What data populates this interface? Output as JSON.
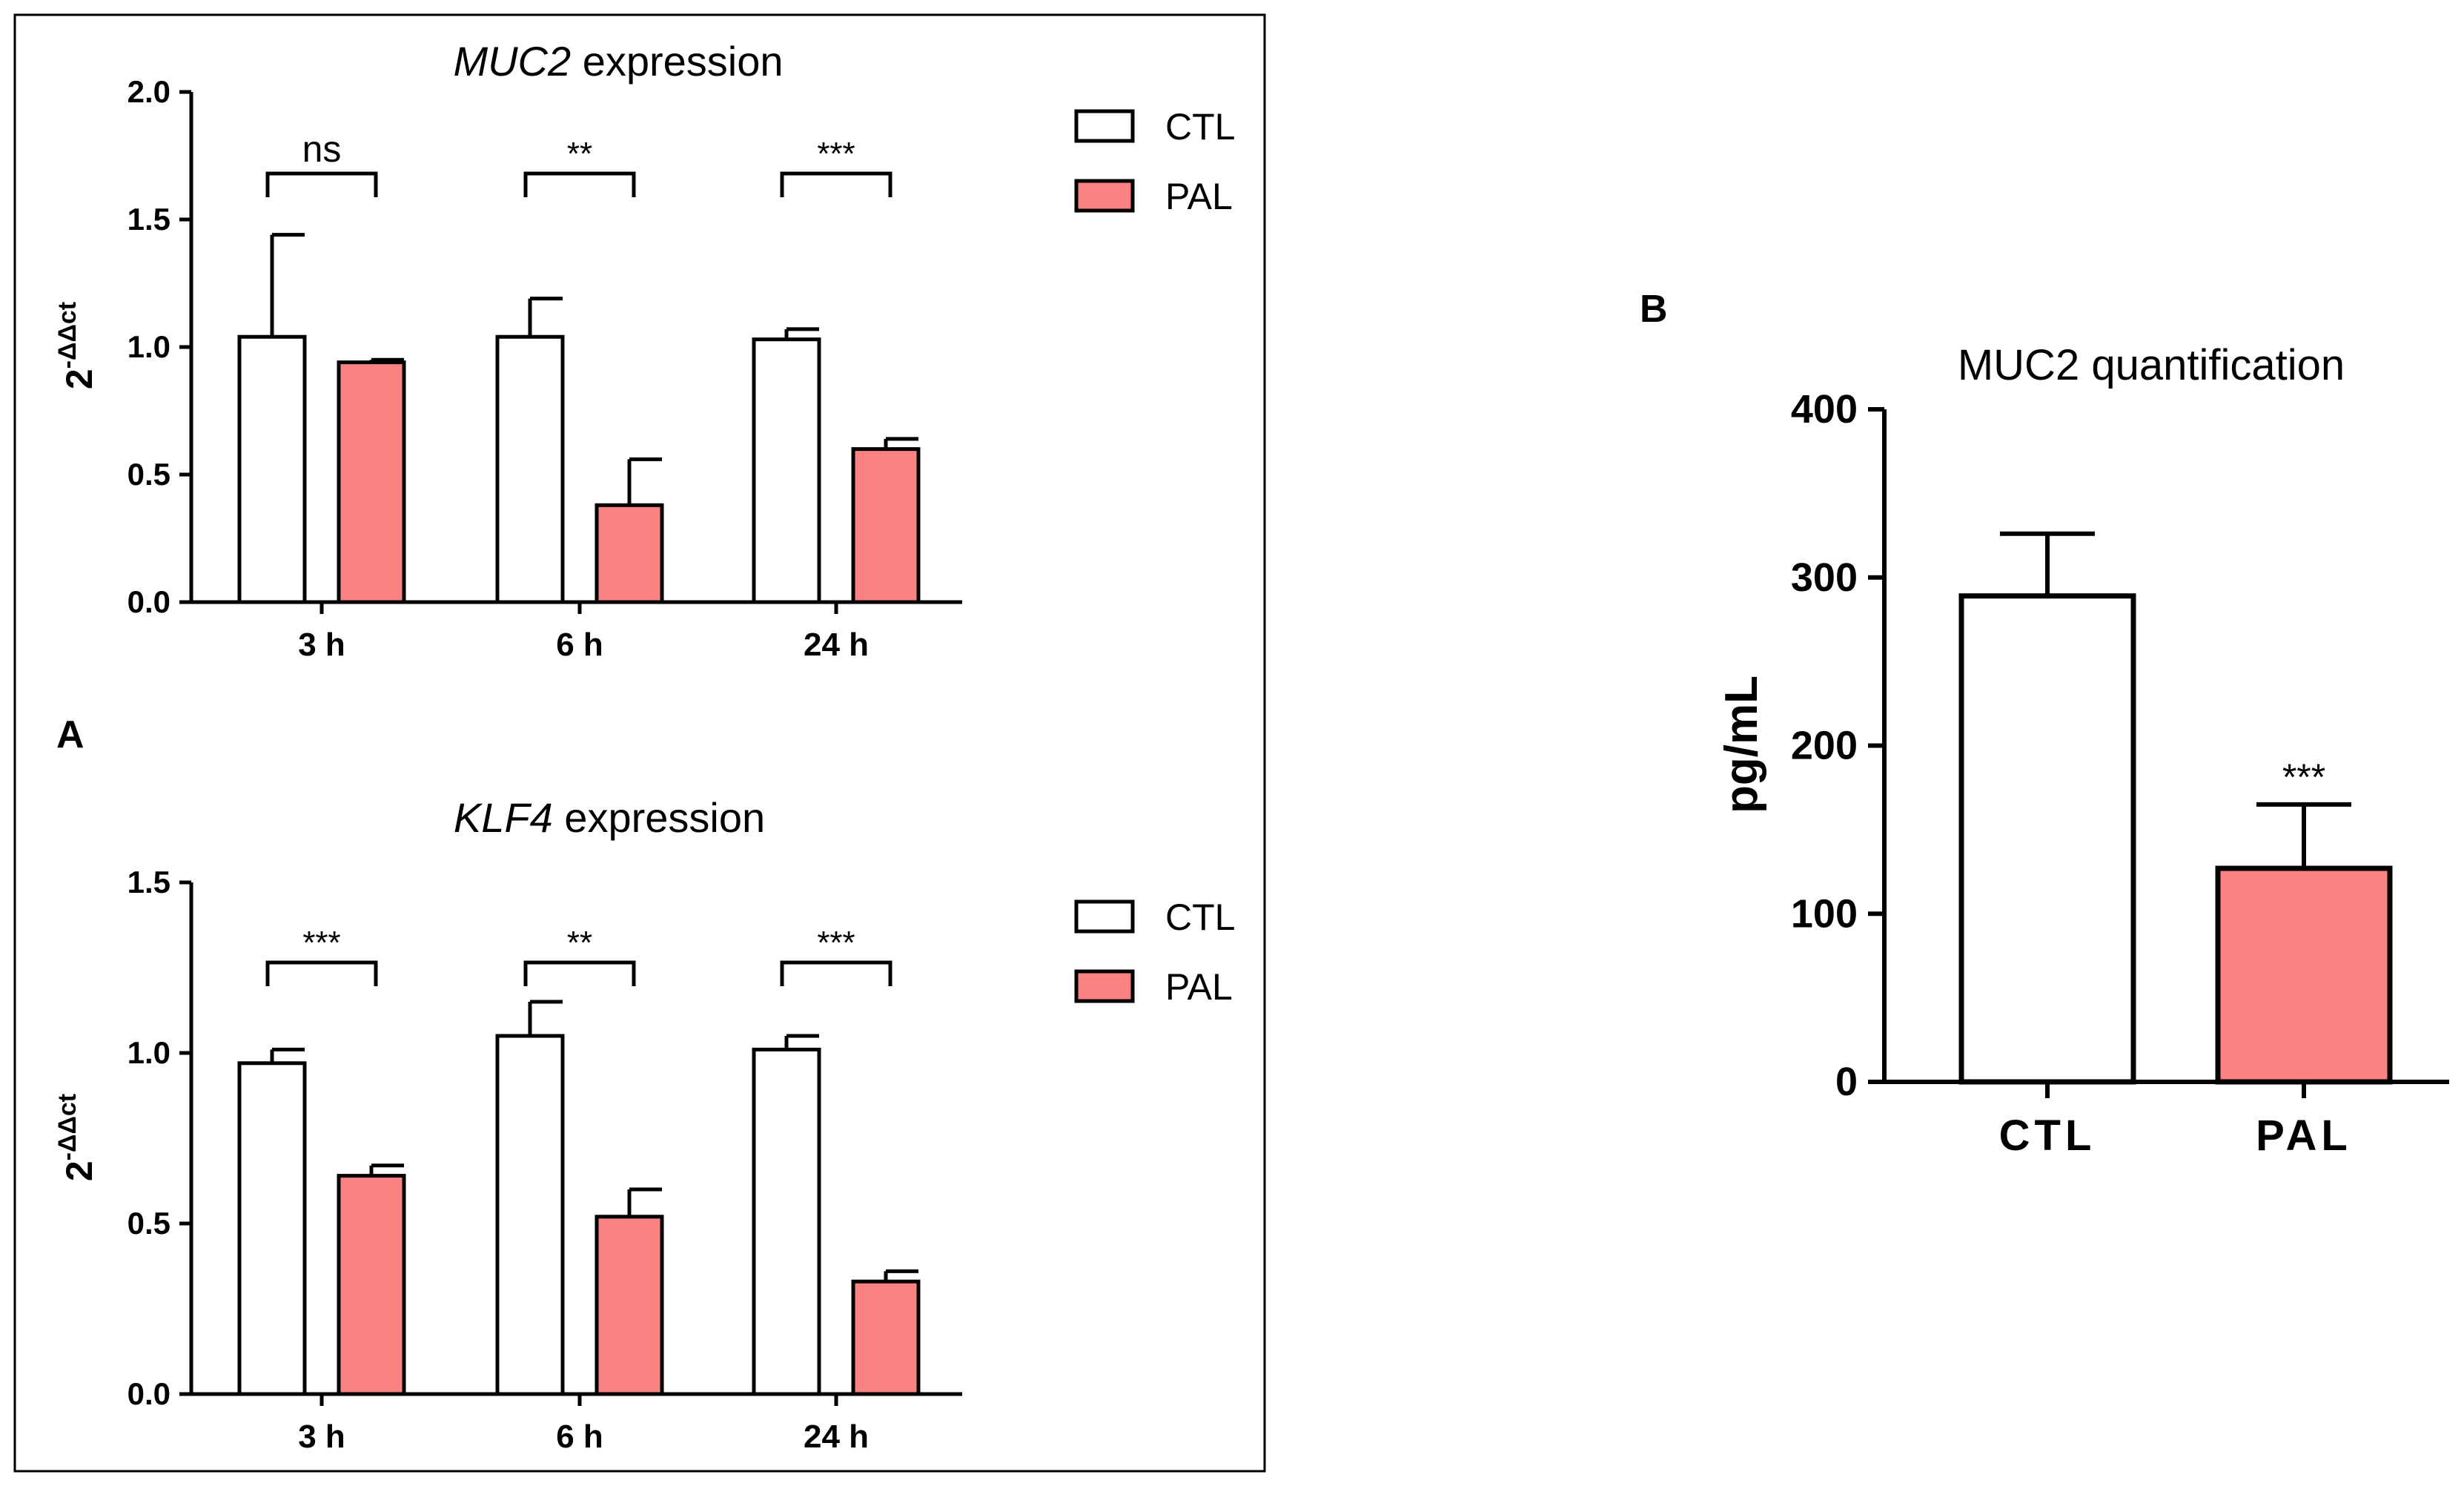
{
  "panel_a": {
    "label": "A",
    "legend": [
      "CTL",
      "PAL"
    ]
  },
  "panel_b": {
    "label": "B"
  },
  "colors": {
    "ctl_fill": "#ffffff",
    "pal_fill": "#fa8282",
    "stroke": "#000000"
  },
  "chart_data": [
    {
      "id": "muc2_expression",
      "type": "bar",
      "title_gene": "MUC2",
      "title_rest": " expression",
      "ylabel_base": "2",
      "ylabel_sup": "-ΔΔct",
      "categories": [
        "3 h",
        "6 h",
        "24 h"
      ],
      "ylim": [
        0,
        2.0
      ],
      "yticks": [
        0.0,
        0.5,
        1.0,
        1.5,
        2.0
      ],
      "ytick_labels": [
        "0.0",
        "0.5",
        "1.0",
        "1.5",
        "2.0"
      ],
      "series": [
        {
          "name": "CTL",
          "values": [
            1.04,
            1.04,
            1.03
          ],
          "errors": [
            0.4,
            0.15,
            0.04
          ]
        },
        {
          "name": "PAL",
          "values": [
            0.94,
            0.38,
            0.6
          ],
          "errors": [
            0.01,
            0.18,
            0.04
          ]
        }
      ],
      "significance": [
        "ns",
        "**",
        "***"
      ],
      "legend_position": "top-right"
    },
    {
      "id": "klf4_expression",
      "type": "bar",
      "title_gene": "KLF4",
      "title_rest": " expression",
      "ylabel_base": "2",
      "ylabel_sup": "-ΔΔct",
      "categories": [
        "3 h",
        "6 h",
        "24 h"
      ],
      "ylim": [
        0,
        1.5
      ],
      "yticks": [
        0.0,
        0.5,
        1.0,
        1.5
      ],
      "ytick_labels": [
        "0.0",
        "0.5",
        "1.0",
        "1.5"
      ],
      "series": [
        {
          "name": "CTL",
          "values": [
            0.97,
            1.05,
            1.01
          ],
          "errors": [
            0.04,
            0.1,
            0.04
          ]
        },
        {
          "name": "PAL",
          "values": [
            0.64,
            0.52,
            0.33
          ],
          "errors": [
            0.03,
            0.08,
            0.03
          ]
        }
      ],
      "significance": [
        "***",
        "**",
        "***"
      ],
      "legend_position": "top-right"
    },
    {
      "id": "muc2_quantification",
      "type": "bar",
      "title": "MUC2 quantification",
      "ylabel": "pg/mL",
      "categories": [
        "CTL",
        "PAL"
      ],
      "ylim": [
        0,
        400
      ],
      "yticks": [
        0,
        100,
        200,
        300,
        400
      ],
      "ytick_labels": [
        "0",
        "100",
        "200",
        "300",
        "400"
      ],
      "values": [
        289,
        127
      ],
      "errors": [
        37,
        38
      ],
      "significance": [
        "",
        "***"
      ]
    }
  ]
}
